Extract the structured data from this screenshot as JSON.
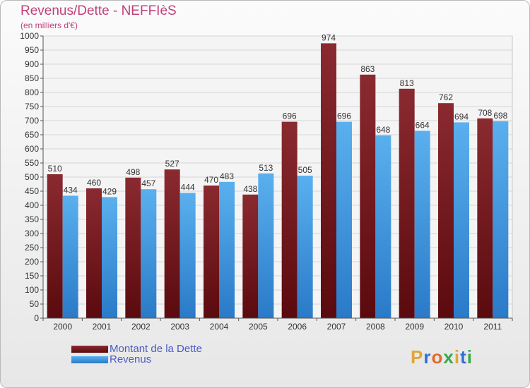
{
  "title": "Revenus/Dette - NEFFIèS",
  "subtitle": "(en milliers d'€)",
  "colors": {
    "dette": "#7a1e24",
    "revenus": "#4aa3e6",
    "title": "#c0407a"
  },
  "legend": {
    "dette_label": "Montant de la Dette",
    "revenus_label": "Revenus"
  },
  "logo": {
    "letters": [
      "P",
      "r",
      "o",
      "x",
      "i",
      "t",
      "i"
    ],
    "colors": [
      "#e2a53a",
      "#2f6fd6",
      "#e36b2a",
      "#3aa84a",
      "#e2a53a",
      "#2f6fd6",
      "#3aa84a"
    ]
  },
  "chart_data": {
    "type": "bar",
    "categories": [
      "2000",
      "2001",
      "2002",
      "2003",
      "2004",
      "2005",
      "2006",
      "2007",
      "2008",
      "2009",
      "2010",
      "2011"
    ],
    "series": [
      {
        "name": "Montant de la Dette",
        "values": [
          510,
          460,
          498,
          527,
          470,
          438,
          696,
          974,
          863,
          813,
          762,
          708
        ]
      },
      {
        "name": "Revenus",
        "values": [
          434,
          429,
          457,
          444,
          483,
          513,
          505,
          696,
          648,
          664,
          694,
          698
        ]
      }
    ],
    "ylim": [
      0,
      1000
    ],
    "yticks": [
      0,
      50,
      100,
      150,
      200,
      250,
      300,
      350,
      400,
      450,
      500,
      550,
      600,
      650,
      700,
      750,
      800,
      850,
      900,
      950,
      1000
    ],
    "grid": true,
    "legend_position": "bottom-left"
  }
}
